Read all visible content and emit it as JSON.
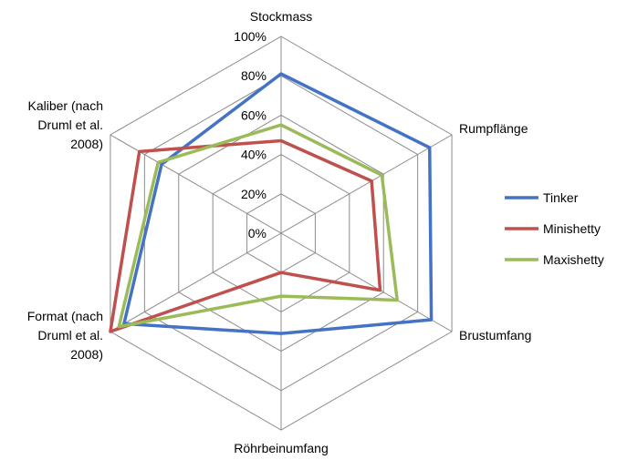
{
  "chart_data": {
    "type": "radar",
    "axes": [
      "Stockmass",
      "Rumpflänge",
      "Brustumfang",
      "Röhrbeinumfang",
      "Format (nach Druml et al. 2008)",
      "Kaliber (nach Druml et al. 2008)"
    ],
    "axis_label_lines": [
      [
        "Stockmass"
      ],
      [
        "Rumpflänge"
      ],
      [
        "Brustumfang"
      ],
      [
        "Röhrbeinumfang"
      ],
      [
        "Format (nach",
        "Druml et al.",
        "2008)"
      ],
      [
        "Kaliber (nach",
        "Druml et al.",
        "2008)"
      ]
    ],
    "tick_labels": [
      "0%",
      "20%",
      "40%",
      "60%",
      "80%",
      "100%"
    ],
    "ticks": [
      0,
      20,
      40,
      60,
      80,
      100
    ],
    "range": [
      0,
      100
    ],
    "grid": true,
    "legend_position": "right",
    "series": [
      {
        "name": "Tinker",
        "color": "#4472C4",
        "values": [
          81,
          87,
          88,
          51,
          92,
          70
        ]
      },
      {
        "name": "Minishetty",
        "color": "#C0504D",
        "values": [
          47,
          53,
          58,
          20,
          100,
          83
        ]
      },
      {
        "name": "Maxishetty",
        "color": "#9BBB59",
        "values": [
          55,
          59,
          68,
          32,
          95,
          72
        ]
      }
    ]
  }
}
